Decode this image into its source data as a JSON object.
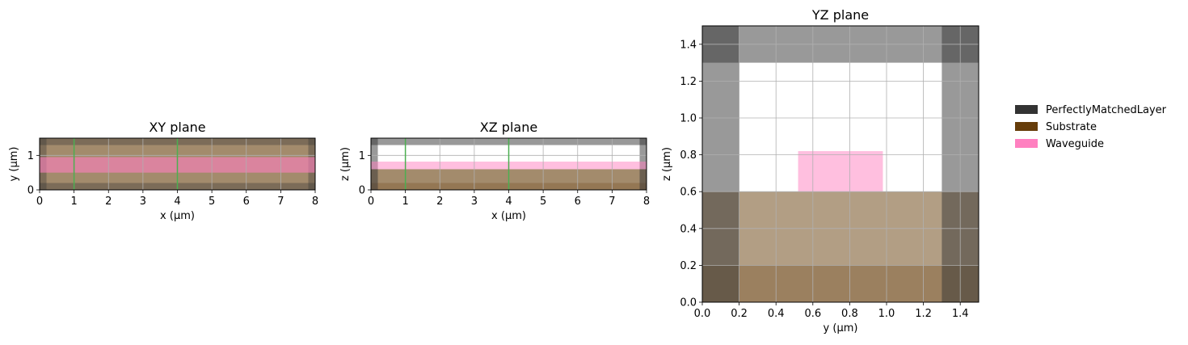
{
  "colors": {
    "pml": "#333333",
    "substrate": "#663d0a",
    "waveguide": "#ff80c0",
    "monitor": "#4caf50",
    "grid": "#b0b0b0"
  },
  "legend": {
    "placement": "right",
    "items": [
      {
        "label": "PerfectlyMatchedLayer",
        "color": "#333333"
      },
      {
        "label": "Substrate",
        "color": "#663d0a"
      },
      {
        "label": "Waveguide",
        "color": "#ff80c0"
      }
    ]
  },
  "chart_data": [
    {
      "type": "area",
      "id": "xy",
      "title": "XY plane",
      "xlabel": "x (μm)",
      "ylabel": "y (μm)",
      "xlim": [
        0,
        8
      ],
      "ylim": [
        0,
        1.5
      ],
      "xticks": [
        0,
        1,
        2,
        3,
        4,
        5,
        6,
        7,
        8
      ],
      "yticks": [
        0,
        1
      ],
      "grid": true,
      "regions": [
        {
          "material": "substrate",
          "x": [
            0,
            8
          ],
          "y": [
            0,
            1.5
          ],
          "opacity": 0.6
        },
        {
          "material": "pml",
          "x": [
            0,
            0.2
          ],
          "y": [
            0,
            1.5
          ],
          "opacity": 0.35
        },
        {
          "material": "pml",
          "x": [
            7.8,
            8
          ],
          "y": [
            0,
            1.5
          ],
          "opacity": 0.35
        },
        {
          "material": "pml",
          "x": [
            0,
            8
          ],
          "y": [
            0,
            0.2
          ],
          "opacity": 0.35
        },
        {
          "material": "pml",
          "x": [
            0,
            8
          ],
          "y": [
            1.3,
            1.5
          ],
          "opacity": 0.35
        },
        {
          "material": "waveguide",
          "x": [
            0,
            8
          ],
          "y": [
            0.5,
            0.95
          ],
          "opacity": 0.6
        }
      ],
      "monitors": [
        {
          "axis": "x",
          "value": 1
        },
        {
          "axis": "x",
          "value": 4
        }
      ]
    },
    {
      "type": "area",
      "id": "xz",
      "title": "XZ plane",
      "xlabel": "x (μm)",
      "ylabel": "z (μm)",
      "xlim": [
        0,
        8
      ],
      "ylim": [
        0,
        1.5
      ],
      "xticks": [
        0,
        1,
        2,
        3,
        4,
        5,
        6,
        7,
        8
      ],
      "yticks": [
        0,
        1
      ],
      "grid": true,
      "regions": [
        {
          "material": "substrate",
          "x": [
            0,
            8
          ],
          "y": [
            0,
            0.6
          ],
          "opacity": 0.6
        },
        {
          "material": "substrate",
          "x": [
            0,
            8
          ],
          "y": [
            0,
            0.2
          ],
          "opacity": 0.25
        },
        {
          "material": "pml",
          "x": [
            0,
            8
          ],
          "y": [
            1.3,
            1.5
          ],
          "opacity": 0.5
        },
        {
          "material": "pml",
          "x": [
            0,
            0.2
          ],
          "y": [
            0,
            1.5
          ],
          "opacity": 0.5
        },
        {
          "material": "pml",
          "x": [
            7.8,
            8
          ],
          "y": [
            0,
            1.5
          ],
          "opacity": 0.5
        },
        {
          "material": "waveguide",
          "x": [
            0,
            8
          ],
          "y": [
            0.6,
            0.82
          ],
          "opacity": 0.5
        }
      ],
      "monitors": [
        {
          "axis": "x",
          "value": 1
        },
        {
          "axis": "x",
          "value": 4
        }
      ]
    },
    {
      "type": "area",
      "id": "yz",
      "title": "YZ plane",
      "xlabel": "y (μm)",
      "ylabel": "z (μm)",
      "xlim": [
        0,
        1.5
      ],
      "ylim": [
        0,
        1.5
      ],
      "xticks": [
        0.0,
        0.2,
        0.4,
        0.6,
        0.8,
        1.0,
        1.2,
        1.4
      ],
      "yticks": [
        0.0,
        0.2,
        0.4,
        0.6,
        0.8,
        1.0,
        1.2,
        1.4
      ],
      "grid": true,
      "regions": [
        {
          "material": "substrate",
          "x": [
            0,
            1.5
          ],
          "y": [
            0,
            0.6
          ],
          "opacity": 0.5
        },
        {
          "material": "substrate",
          "x": [
            0,
            1.5
          ],
          "y": [
            0,
            0.2
          ],
          "opacity": 0.3
        },
        {
          "material": "pml",
          "x": [
            0,
            0.2
          ],
          "y": [
            0,
            1.5
          ],
          "opacity": 0.5
        },
        {
          "material": "pml",
          "x": [
            1.3,
            1.5
          ],
          "y": [
            0,
            1.5
          ],
          "opacity": 0.5
        },
        {
          "material": "pml",
          "x": [
            0,
            1.5
          ],
          "y": [
            1.3,
            1.5
          ],
          "opacity": 0.5
        },
        {
          "material": "waveguide",
          "x": [
            0.52,
            0.98
          ],
          "y": [
            0.6,
            0.82
          ],
          "opacity": 0.5
        }
      ],
      "monitors": []
    }
  ]
}
